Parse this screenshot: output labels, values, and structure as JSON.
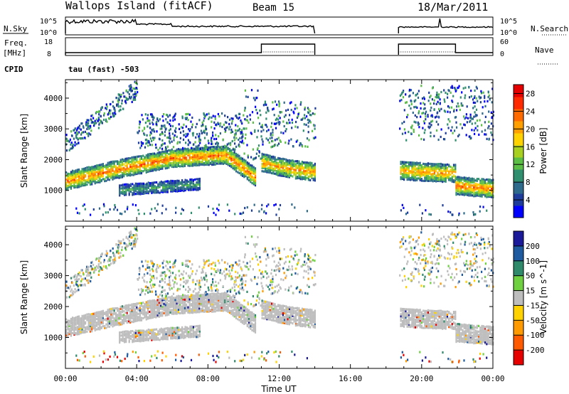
{
  "header": {
    "station": "Wallops Island (fitACF)",
    "beam": "Beam 15",
    "date": "18/Mar/2011"
  },
  "noise_panel": {
    "left_label": "N.Sky",
    "right_label": "N.Search",
    "left_ticks": [
      "10^5",
      "10^0"
    ],
    "right_ticks": [
      "10^5",
      "10^0"
    ]
  },
  "freq_panel": {
    "left_label_line1": "Freq.",
    "left_label_line2": "[MHz]",
    "left_ticks": [
      "18",
      "8"
    ],
    "right_label": "Nave",
    "right_ticks": [
      "60",
      "0"
    ]
  },
  "cpid": {
    "label": "CPID",
    "value": "tau (fast) -503"
  },
  "colors": {
    "power_scale": [
      "#0000ff",
      "#1e3c9c",
      "#2e6a8c",
      "#2f8f6e",
      "#5bbf45",
      "#a8d020",
      "#ffd200",
      "#ffa000",
      "#ff6a00",
      "#ff2a00",
      "#e60000"
    ],
    "velocity_scale": [
      "#1a1a9a",
      "#1e5aa0",
      "#2e8a6a",
      "#6fd040",
      "#bdbdbd",
      "#ffd200",
      "#ff9a00",
      "#ff5a00",
      "#e60000"
    ]
  },
  "chart_data": [
    {
      "type": "heatmap",
      "title": "Power",
      "ylabel": "Slant Range [km]",
      "ylim": [
        0,
        4600
      ],
      "yticks": [
        "1000",
        "2000",
        "3000",
        "4000"
      ],
      "xlim_hours": [
        0,
        24
      ],
      "xticks": [
        "00:00",
        "04:00",
        "08:00",
        "12:00",
        "16:00",
        "20:00",
        "00:00"
      ],
      "colorbar": {
        "label": "Power [dB]",
        "ticks": [
          "4",
          "8",
          "12",
          "16",
          "20",
          "24",
          "28"
        ],
        "range": [
          0,
          30
        ]
      },
      "data_gaps_hours": [
        [
          14.0,
          18.7
        ]
      ],
      "echo_bands": [
        {
          "t": [
            0.0,
            3.0,
            6.0,
            9.0,
            10.7
          ],
          "range_km": [
            1300,
            1700,
            2050,
            2150,
            1400
          ],
          "peak_db": 24
        },
        {
          "t": [
            11.0,
            12.5,
            14.0
          ],
          "range_km": [
            1900,
            1700,
            1600
          ],
          "peak_db": 22
        },
        {
          "t": [
            18.7,
            20.0,
            21.9
          ],
          "range_km": [
            1650,
            1600,
            1550
          ],
          "peak_db": 22
        },
        {
          "t": [
            21.9,
            24.0
          ],
          "range_km": [
            1150,
            1050
          ],
          "peak_db": 24
        },
        {
          "t": [
            3.0,
            7.5
          ],
          "range_km": [
            1000,
            1200
          ],
          "peak_db": 10
        }
      ]
    },
    {
      "type": "heatmap",
      "title": "Velocity",
      "ylabel": "Slant Range [km]",
      "ylim": [
        0,
        4600
      ],
      "yticks": [
        "1000",
        "2000",
        "3000",
        "4000"
      ],
      "xlim_hours": [
        0,
        24
      ],
      "xticks": [
        "00:00",
        "04:00",
        "08:00",
        "12:00",
        "16:00",
        "20:00",
        "00:00"
      ],
      "xlabel": "Time UT",
      "colorbar": {
        "label": "Velocity [m s^-1]",
        "ticks": [
          "200",
          "100",
          "50",
          "15",
          "-15",
          "-50",
          "-100",
          "-200"
        ],
        "range": [
          -250,
          250
        ]
      },
      "data_gaps_hours": [
        [
          14.0,
          18.7
        ]
      ]
    }
  ]
}
